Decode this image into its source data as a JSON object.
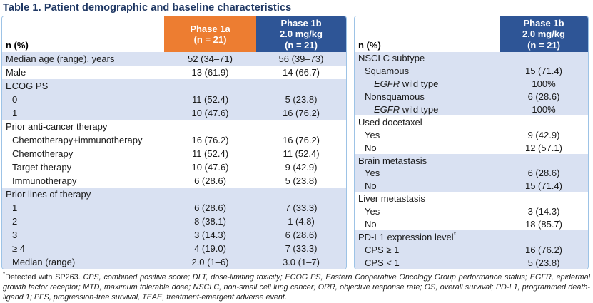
{
  "title": "Table 1. Patient demographic and baseline characteristics",
  "colors": {
    "title_text": "#1f3864",
    "orange_header": "#ed7d31",
    "blue_header": "#2e5596",
    "band": "#d9e1f2",
    "border": "#9dc3e6",
    "header_text": "#ffffff",
    "body_text": "#1a1a1a"
  },
  "left_table": {
    "corner_label": "n (%)",
    "columns": [
      {
        "label": "Phase 1a\n(n = 21)",
        "style": "orange"
      },
      {
        "label": "Phase 1b\n2.0 mg/kg\n(n = 21)",
        "style": "blue"
      }
    ],
    "rows": [
      {
        "label": "Median age (range), years",
        "indent": 0,
        "band": true,
        "values": [
          "52 (34–71)",
          "56 (39–73)"
        ]
      },
      {
        "label": "Male",
        "indent": 0,
        "band": false,
        "values": [
          "13 (61.9)",
          "14 (66.7)"
        ]
      },
      {
        "label": "ECOG PS",
        "indent": 0,
        "band": true,
        "values": [
          "",
          ""
        ]
      },
      {
        "label": "0",
        "indent": 1,
        "band": true,
        "values": [
          "11 (52.4)",
          "5 (23.8)"
        ]
      },
      {
        "label": "1",
        "indent": 1,
        "band": true,
        "values": [
          "10 (47.6)",
          "16 (76.2)"
        ]
      },
      {
        "label": "Prior anti-cancer therapy",
        "indent": 0,
        "band": false,
        "values": [
          "",
          ""
        ]
      },
      {
        "label": "Chemotherapy+immunotherapy",
        "indent": 1,
        "band": false,
        "values": [
          "16 (76.2)",
          "16 (76.2)"
        ]
      },
      {
        "label": "Chemotherapy",
        "indent": 1,
        "band": false,
        "values": [
          "11 (52.4)",
          "11 (52.4)"
        ]
      },
      {
        "label": "Target therapy",
        "indent": 1,
        "band": false,
        "values": [
          "10 (47.6)",
          "9 (42.9)"
        ]
      },
      {
        "label": "Immunotherapy",
        "indent": 1,
        "band": false,
        "values": [
          "6 (28.6)",
          "5 (23.8)"
        ]
      },
      {
        "label": "Prior lines of therapy",
        "indent": 0,
        "band": true,
        "values": [
          "",
          ""
        ]
      },
      {
        "label": "1",
        "indent": 1,
        "band": true,
        "values": [
          "6 (28.6)",
          "7 (33.3)"
        ]
      },
      {
        "label": "2",
        "indent": 1,
        "band": true,
        "values": [
          "8 (38.1)",
          "1 (4.8)"
        ]
      },
      {
        "label": "3",
        "indent": 1,
        "band": true,
        "values": [
          "3 (14.3)",
          "6 (28.6)"
        ]
      },
      {
        "label": "≥ 4",
        "indent": 1,
        "band": true,
        "values": [
          "4 (19.0)",
          "7 (33.3)"
        ]
      },
      {
        "label": "Median (range)",
        "indent": 1,
        "band": true,
        "values": [
          "2.0 (1–6)",
          "3.0 (1–7)"
        ]
      }
    ]
  },
  "right_table": {
    "corner_label": "n (%)",
    "columns": [
      {
        "label": "Phase 1b\n2.0 mg/kg\n(n = 21)",
        "style": "blue"
      }
    ],
    "rows": [
      {
        "label": "NSCLC subtype",
        "indent": 0,
        "band": true,
        "values": [
          ""
        ]
      },
      {
        "label": "Squamous",
        "indent": 1,
        "band": true,
        "values": [
          "15 (71.4)"
        ]
      },
      {
        "italic": "EGFR",
        "label": " wild type",
        "indent": 2,
        "band": true,
        "values": [
          "100%"
        ]
      },
      {
        "label": "Nonsquamous",
        "indent": 1,
        "band": true,
        "values": [
          "6 (28.6)"
        ]
      },
      {
        "italic": "EGFR",
        "label": " wild type",
        "indent": 2,
        "band": true,
        "values": [
          "100%"
        ]
      },
      {
        "label": "Used docetaxel",
        "indent": 0,
        "band": false,
        "values": [
          ""
        ]
      },
      {
        "label": "Yes",
        "indent": 1,
        "band": false,
        "values": [
          "9 (42.9)"
        ]
      },
      {
        "label": "No",
        "indent": 1,
        "band": false,
        "values": [
          "12 (57.1)"
        ]
      },
      {
        "label": "Brain metastasis",
        "indent": 0,
        "band": true,
        "values": [
          ""
        ]
      },
      {
        "label": "Yes",
        "indent": 1,
        "band": true,
        "values": [
          "6 (28.6)"
        ]
      },
      {
        "label": "No",
        "indent": 1,
        "band": true,
        "values": [
          "15 (71.4)"
        ]
      },
      {
        "label": "Liver metastasis",
        "indent": 0,
        "band": false,
        "values": [
          ""
        ]
      },
      {
        "label": "Yes",
        "indent": 1,
        "band": false,
        "values": [
          "3 (14.3)"
        ]
      },
      {
        "label": "No",
        "indent": 1,
        "band": false,
        "values": [
          "18 (85.7)"
        ]
      },
      {
        "label": "PD-L1 expression level",
        "sup": "*",
        "indent": 0,
        "band": true,
        "values": [
          ""
        ]
      },
      {
        "label": "CPS ≥ 1",
        "indent": 1,
        "band": true,
        "values": [
          "16 (76.2)"
        ]
      },
      {
        "label": "CPS < 1",
        "indent": 1,
        "band": true,
        "values": [
          "5 (23.8)"
        ]
      }
    ]
  },
  "footnote": {
    "marker": "*",
    "plain": "Detected with SP263. ",
    "abbreviations": "CPS, combined positive score; DLT, dose-limiting toxicity; ECOG PS, Eastern Cooperative Oncology Group performance status; EGFR, epidermal growth factor receptor; MTD, maximum tolerable dose; NSCLC, non-small cell lung cancer; ORR, objective response rate; OS, overall survival; PD-L1, programmed death-ligand 1; PFS, progression-free survival, TEAE, treatment-emergent adverse event."
  }
}
